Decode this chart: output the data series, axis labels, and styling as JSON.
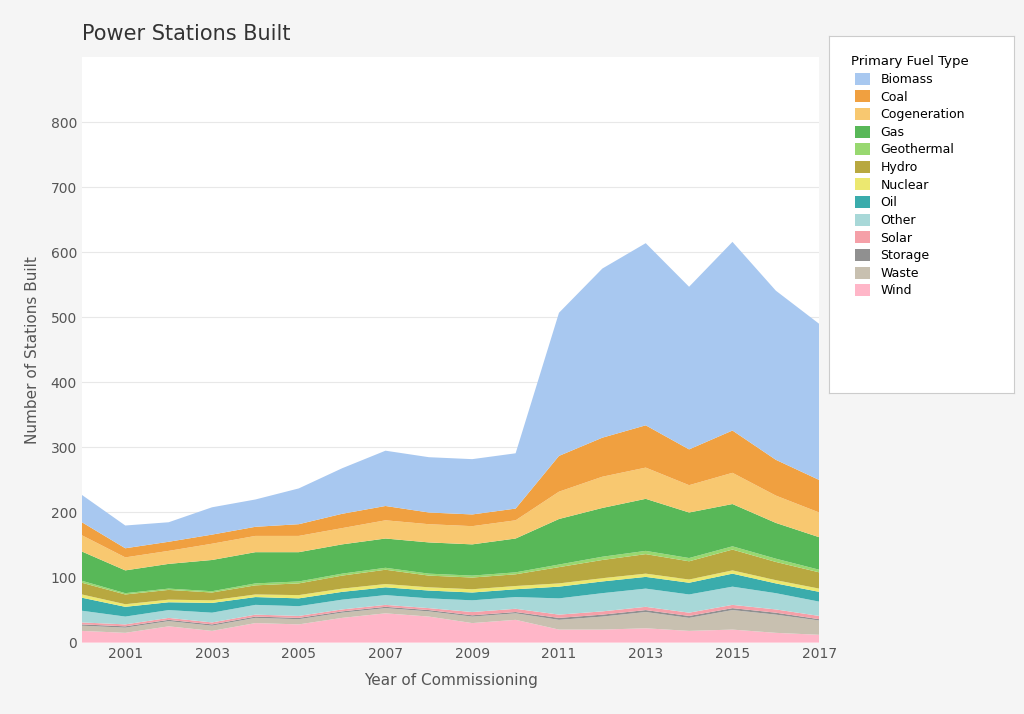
{
  "years": [
    2000,
    2001,
    2002,
    2003,
    2004,
    2005,
    2006,
    2007,
    2008,
    2009,
    2010,
    2011,
    2012,
    2013,
    2014,
    2015,
    2016,
    2017
  ],
  "series": {
    "Wind": [
      18,
      15,
      25,
      18,
      30,
      28,
      38,
      45,
      40,
      30,
      35,
      20,
      20,
      22,
      18,
      20,
      15,
      12
    ],
    "Waste": [
      8,
      8,
      8,
      8,
      8,
      8,
      8,
      8,
      8,
      10,
      10,
      15,
      20,
      25,
      20,
      30,
      28,
      22
    ],
    "Storage": [
      2,
      2,
      2,
      2,
      2,
      2,
      2,
      2,
      2,
      2,
      2,
      3,
      3,
      3,
      3,
      3,
      3,
      2
    ],
    "Solar": [
      3,
      3,
      3,
      3,
      3,
      3,
      3,
      3,
      3,
      5,
      5,
      5,
      5,
      5,
      5,
      5,
      5,
      5
    ],
    "Other": [
      18,
      12,
      12,
      15,
      15,
      15,
      15,
      15,
      15,
      18,
      18,
      25,
      28,
      28,
      28,
      28,
      25,
      22
    ],
    "Oil": [
      20,
      15,
      12,
      15,
      12,
      12,
      12,
      12,
      12,
      12,
      12,
      18,
      18,
      18,
      18,
      20,
      15,
      15
    ],
    "Nuclear": [
      5,
      4,
      4,
      4,
      4,
      5,
      5,
      5,
      5,
      5,
      5,
      5,
      5,
      5,
      5,
      5,
      5,
      5
    ],
    "Hydro": [
      18,
      15,
      15,
      12,
      14,
      18,
      20,
      22,
      18,
      18,
      18,
      25,
      28,
      30,
      28,
      32,
      28,
      25
    ],
    "Geothermal": [
      3,
      2,
      2,
      2,
      3,
      3,
      3,
      3,
      3,
      3,
      3,
      4,
      5,
      5,
      5,
      5,
      5,
      4
    ],
    "Gas": [
      45,
      35,
      38,
      48,
      48,
      45,
      45,
      45,
      48,
      48,
      52,
      70,
      75,
      80,
      70,
      65,
      55,
      50
    ],
    "Cogeneration": [
      25,
      20,
      20,
      25,
      25,
      25,
      25,
      28,
      28,
      28,
      28,
      42,
      48,
      48,
      42,
      48,
      42,
      38
    ],
    "Coal": [
      20,
      14,
      14,
      14,
      14,
      18,
      22,
      22,
      18,
      18,
      18,
      55,
      60,
      65,
      55,
      65,
      55,
      50
    ],
    "Biomass": [
      42,
      35,
      30,
      42,
      42,
      55,
      70,
      85,
      85,
      85,
      85,
      220,
      260,
      280,
      250,
      290,
      260,
      240
    ]
  },
  "colors": {
    "Wind": "#ffb6c8",
    "Waste": "#c8c0b0",
    "Storage": "#909090",
    "Solar": "#f5a0a8",
    "Other": "#a8d8d8",
    "Oil": "#3aacac",
    "Nuclear": "#ece870",
    "Hydro": "#b8a840",
    "Geothermal": "#98d870",
    "Gas": "#58b858",
    "Cogeneration": "#f8c870",
    "Coal": "#f0a040",
    "Biomass": "#a8c8f0"
  },
  "stack_order": [
    "Wind",
    "Waste",
    "Storage",
    "Solar",
    "Other",
    "Oil",
    "Nuclear",
    "Hydro",
    "Geothermal",
    "Gas",
    "Cogeneration",
    "Coal",
    "Biomass"
  ],
  "title": "Power Stations Built",
  "xlabel": "Year of Commissioning",
  "ylabel": "Number of Stations Built",
  "legend_title": "Primary Fuel Type",
  "legend_order": [
    "Biomass",
    "Coal",
    "Cogeneration",
    "Gas",
    "Geothermal",
    "Hydro",
    "Nuclear",
    "Oil",
    "Other",
    "Solar",
    "Storage",
    "Waste",
    "Wind"
  ],
  "xlim": [
    2000,
    2017
  ],
  "ylim": [
    0,
    900
  ],
  "yticks": [
    0,
    100,
    200,
    300,
    400,
    500,
    600,
    700,
    800
  ],
  "xticks": [
    2001,
    2003,
    2005,
    2007,
    2009,
    2011,
    2013,
    2015,
    2017
  ],
  "background_color": "#f5f5f5",
  "plot_background": "#ffffff",
  "grid_color": "#e8e8e8",
  "title_fontsize": 15,
  "axis_fontsize": 11,
  "tick_fontsize": 10
}
